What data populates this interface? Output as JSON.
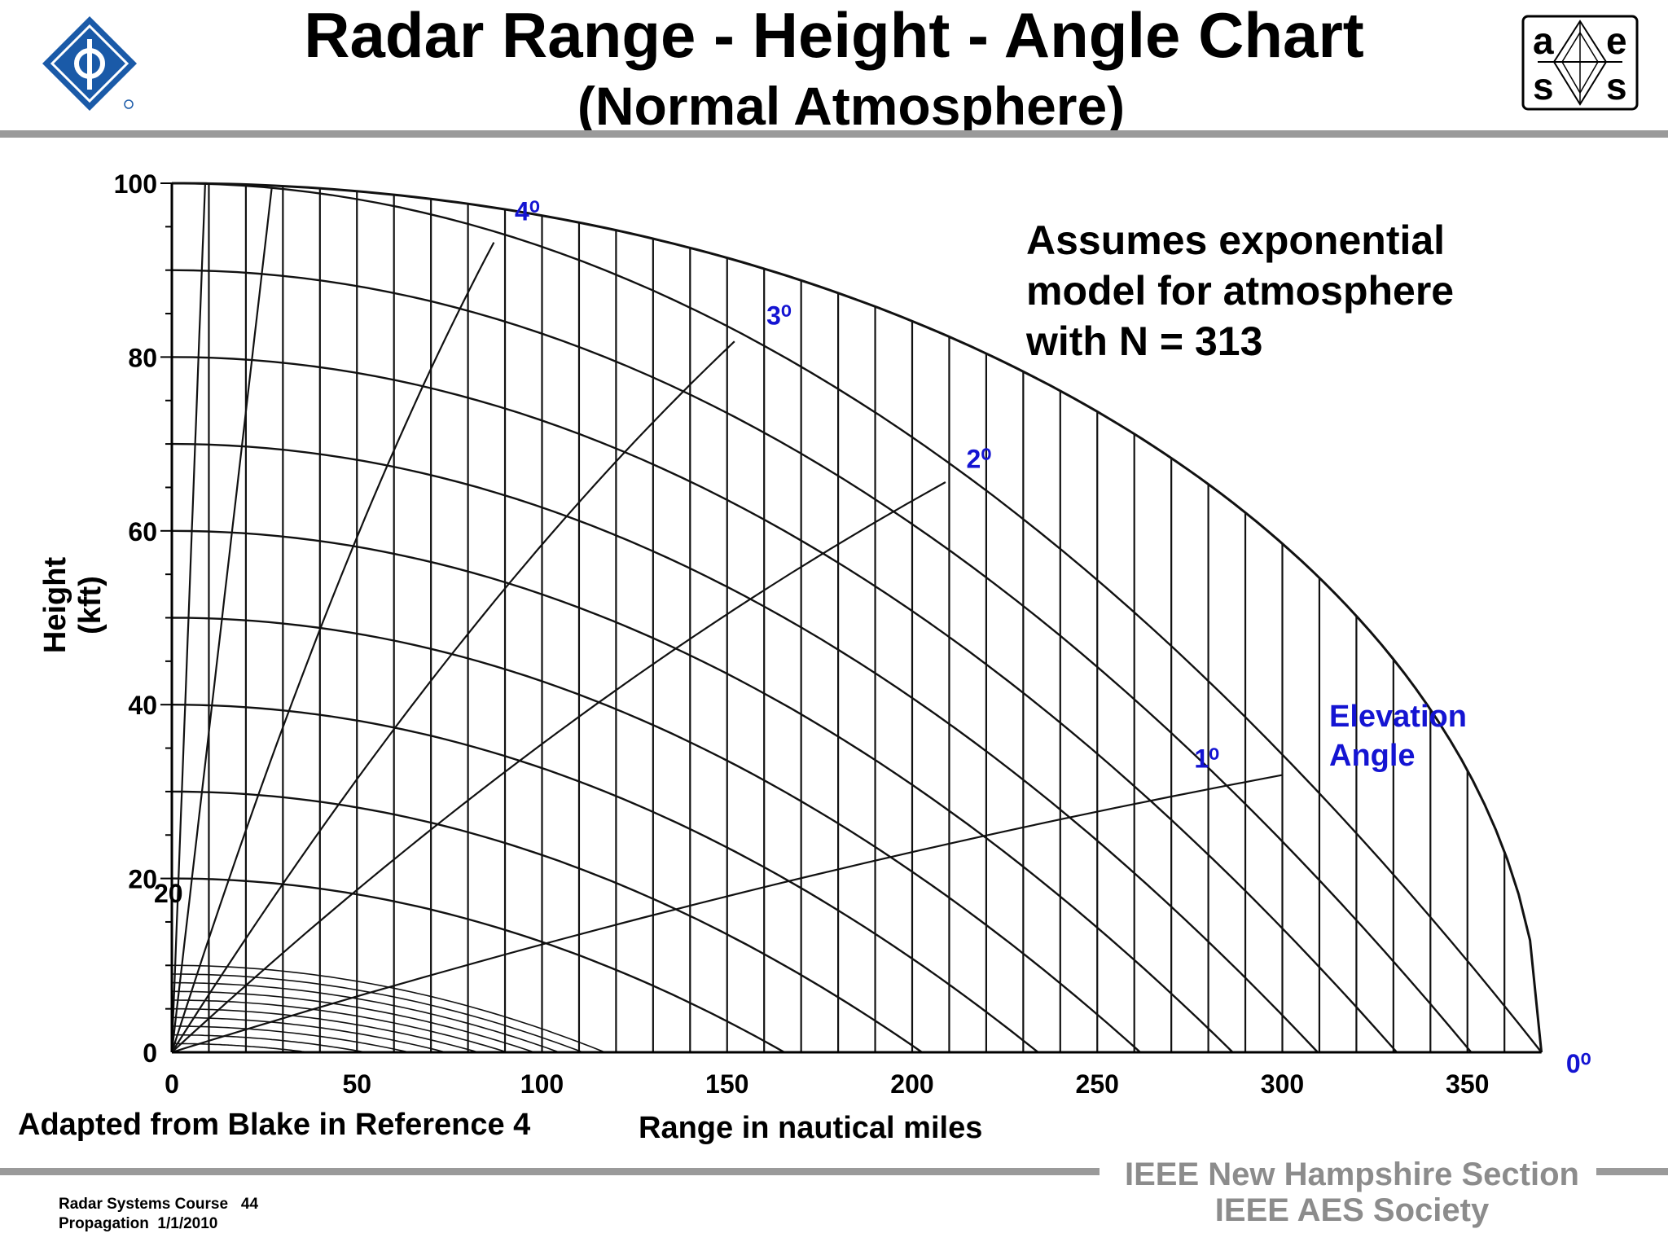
{
  "header": {
    "title": "Radar Range - Height - Angle Chart",
    "subtitle": "(Normal Atmosphere)",
    "left_logo_icon": "ieee-logo",
    "right_logo_icon": "aess-logo",
    "right_logo_letters": [
      "a",
      "e",
      "s",
      "s"
    ]
  },
  "annotation": {
    "assumes": "Assumes exponential\nmodel for atmosphere\nwith N = 313",
    "elevation_label": "Elevation\nAngle"
  },
  "source_note": "Adapted from Blake in Reference 4",
  "footer": {
    "org_line1": "IEEE New Hampshire Section",
    "org_line2": "IEEE AES Society",
    "course": "Radar Systems Course",
    "page": "44",
    "topic": "Propagation",
    "date": "1/1/2010"
  },
  "colors": {
    "blue_label": "#1414d2",
    "footer_gray": "#8c8c8c",
    "rule_gray": "#9a9a9a"
  },
  "chart_data": {
    "type": "line",
    "title": "Radar Range - Height - Angle Chart",
    "subtitle": "(Normal Atmosphere)",
    "xlabel": "Range in nautical miles",
    "ylabel": "Height (kft)",
    "xlim": [
      0,
      370
    ],
    "ylim": [
      0,
      100
    ],
    "xticks": [
      "0",
      "50",
      "100",
      "150",
      "200",
      "250",
      "300",
      "350"
    ],
    "yticks": [
      "0",
      "20",
      "40",
      "60",
      "80",
      "100"
    ],
    "stray_label": "20",
    "grid": "curved height and range lines",
    "height_curves_kft": [
      0,
      1,
      2,
      3,
      4,
      5,
      6,
      7,
      8,
      9,
      10,
      20,
      30,
      40,
      50,
      60,
      70,
      80,
      90,
      100
    ],
    "elevation_angle_labels": [
      "0⁰",
      "1⁰",
      "2⁰",
      "3⁰",
      "4⁰"
    ],
    "elevation_lines": [
      {
        "angle": "0⁰",
        "end": [
          370,
          0
        ]
      },
      {
        "angle": "1⁰",
        "end": [
          300,
          31.9
        ]
      },
      {
        "angle": "2⁰",
        "end": [
          209,
          65.6
        ]
      },
      {
        "angle": "3⁰",
        "end": [
          152,
          81.8
        ]
      },
      {
        "angle": "4⁰",
        "end": [
          87,
          93.2
        ]
      },
      {
        "angle": "",
        "end": [
          27,
          99.5
        ]
      },
      {
        "angle": "",
        "end": [
          9,
          100
        ]
      }
    ]
  }
}
